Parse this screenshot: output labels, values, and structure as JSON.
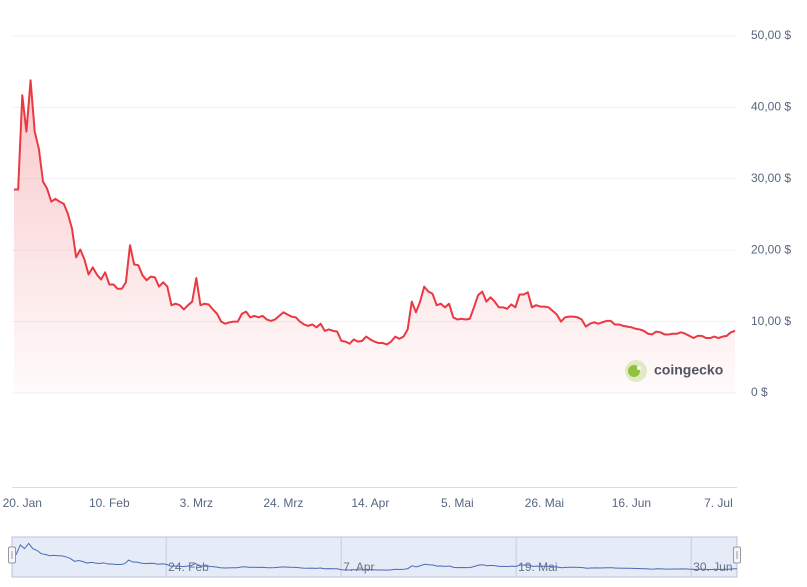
{
  "chart_data": {
    "type": "line",
    "color": "#ea3943",
    "grid": true,
    "watermark": "coingecko",
    "categories": [
      null,
      null,
      "20. Jan",
      null,
      null,
      null,
      null,
      null,
      null,
      null,
      null,
      null,
      null,
      null,
      null,
      null,
      null,
      null,
      null,
      null,
      null,
      null,
      null,
      "10. Feb",
      null,
      null,
      null,
      null,
      null,
      null,
      null,
      null,
      null,
      null,
      null,
      null,
      null,
      null,
      null,
      null,
      null,
      null,
      null,
      null,
      "3. Mrz",
      null,
      null,
      null,
      null,
      null,
      null,
      null,
      null,
      null,
      null,
      null,
      null,
      null,
      null,
      null,
      null,
      null,
      null,
      null,
      null,
      "24. Mrz",
      null,
      null,
      null,
      null,
      null,
      null,
      null,
      null,
      null,
      null,
      null,
      null,
      null,
      null,
      null,
      null,
      null,
      null,
      null,
      null,
      "14. Apr",
      null,
      null,
      null,
      null,
      null,
      null,
      null,
      null,
      null,
      null,
      null,
      null,
      null,
      null,
      null,
      null,
      null,
      null,
      null,
      null,
      "5. Mai",
      null,
      null,
      null,
      null,
      null,
      null,
      null,
      null,
      null,
      null,
      null,
      null,
      null,
      null,
      null,
      null,
      null,
      null,
      null,
      null,
      "26. Mai",
      null,
      null,
      null,
      null,
      null,
      null,
      null,
      null,
      null,
      null,
      null,
      null,
      null,
      null,
      null,
      null,
      null,
      null,
      null,
      null,
      "16. Jun",
      null,
      null,
      null,
      null,
      null,
      null,
      null,
      null,
      null,
      null,
      null,
      null,
      null,
      null,
      null,
      null,
      null,
      null,
      null,
      null,
      "7. Jul",
      null,
      null,
      null,
      null
    ],
    "values": [
      28.5,
      28.5,
      41.7,
      36.6,
      43.8,
      36.6,
      34.2,
      29.6,
      28.6,
      26.8,
      27.2,
      26.8,
      26.5,
      25.1,
      23.0,
      19.0,
      20.1,
      18.7,
      16.6,
      17.6,
      16.6,
      15.9,
      16.9,
      15.2,
      15.2,
      14.6,
      14.6,
      15.5,
      20.7,
      18.0,
      17.9,
      16.5,
      15.8,
      16.3,
      16.2,
      14.9,
      15.5,
      14.9,
      12.3,
      12.5,
      12.3,
      11.7,
      12.3,
      12.8,
      16.1,
      12.3,
      12.5,
      12.4,
      11.7,
      11.1,
      10.0,
      9.7,
      9.9,
      10.0,
      10.0,
      11.1,
      11.4,
      10.6,
      10.8,
      10.6,
      10.8,
      10.3,
      10.1,
      10.3,
      10.8,
      11.3,
      11.0,
      10.7,
      10.6,
      10.0,
      9.6,
      9.4,
      9.6,
      9.2,
      9.7,
      8.7,
      8.9,
      8.7,
      8.6,
      7.3,
      7.2,
      6.9,
      7.5,
      7.2,
      7.3,
      7.9,
      7.5,
      7.2,
      7.0,
      7.0,
      6.8,
      7.2,
      7.9,
      7.6,
      7.9,
      8.9,
      12.8,
      11.3,
      12.8,
      14.9,
      14.2,
      13.9,
      12.3,
      12.5,
      12.0,
      12.5,
      10.6,
      10.3,
      10.4,
      10.3,
      10.4,
      12.0,
      13.7,
      14.2,
      12.8,
      13.4,
      12.8,
      12.0,
      12.0,
      11.8,
      12.4,
      12.0,
      13.8,
      13.8,
      14.1,
      12.0,
      12.3,
      12.1,
      12.1,
      12.0,
      11.5,
      11.0,
      10.0,
      10.6,
      10.7,
      10.7,
      10.6,
      10.3,
      9.3,
      9.7,
      9.9,
      9.7,
      9.9,
      10.1,
      10.1,
      9.6,
      9.6,
      9.4,
      9.3,
      9.2,
      9.0,
      8.9,
      8.7,
      8.3,
      8.2,
      8.6,
      8.5,
      8.2,
      8.2,
      8.3,
      8.3,
      8.5,
      8.3,
      8.0,
      7.7,
      8.0,
      8.0,
      7.7,
      7.7,
      7.9,
      7.7,
      7.9,
      8.0,
      8.5,
      8.7
    ],
    "ylim": [
      0,
      50
    ],
    "yticks": [
      {
        "value": 0,
        "label": "0 $"
      },
      {
        "value": 10,
        "label": "10,00 $"
      },
      {
        "value": 20,
        "label": "20,00 $"
      },
      {
        "value": 30,
        "label": "30,00 $"
      },
      {
        "value": 40,
        "label": "40,00 $"
      },
      {
        "value": 50,
        "label": "50,00 $"
      }
    ],
    "navigator_ticks": [
      {
        "value": 37,
        "label": "24. Feb"
      },
      {
        "value": 79,
        "label": "7. Apr"
      },
      {
        "value": 121,
        "label": "19. Mai"
      },
      {
        "value": 163,
        "label": "30. Jun"
      }
    ]
  }
}
